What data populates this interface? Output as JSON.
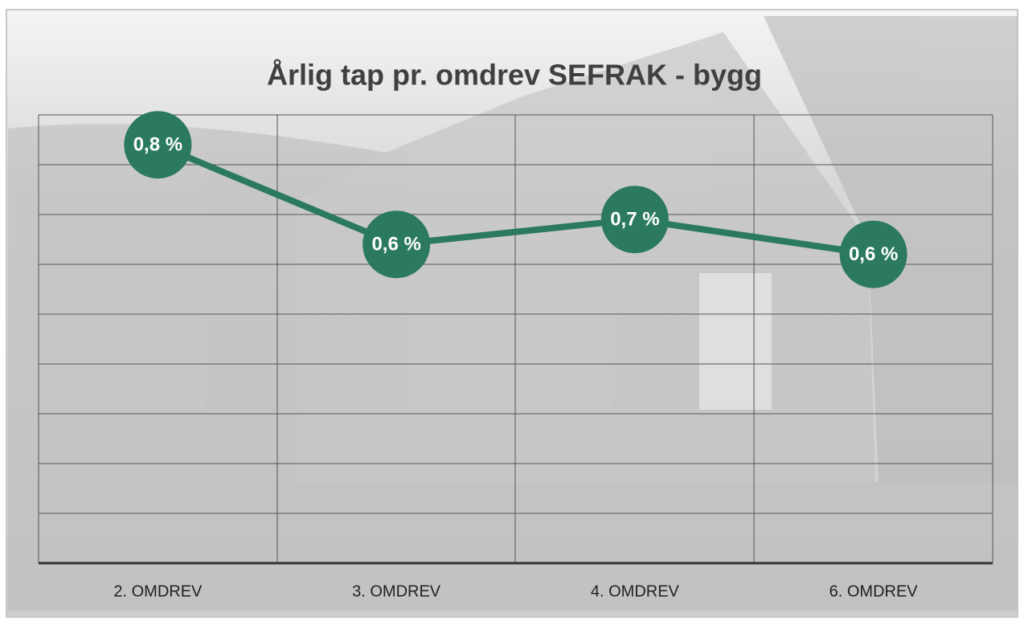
{
  "chart_data": {
    "type": "line",
    "title": "Årlig tap pr. omdrev SEFRAK - bygg",
    "categories": [
      "2. OMDREV",
      "3. OMDREV",
      "4. OMDREV",
      "6. OMDREV"
    ],
    "values": [
      0.84,
      0.64,
      0.69,
      0.62
    ],
    "value_labels": [
      "0,8 %",
      "0,6 %",
      "0,7 %",
      "0,6 %"
    ],
    "color": "#2b7a5f",
    "ylim": [
      0,
      0.9
    ],
    "yticks": [
      0,
      0.1,
      0.2,
      0.3,
      0.4,
      0.5,
      0.6,
      0.7,
      0.8,
      0.9
    ],
    "grid": true
  }
}
